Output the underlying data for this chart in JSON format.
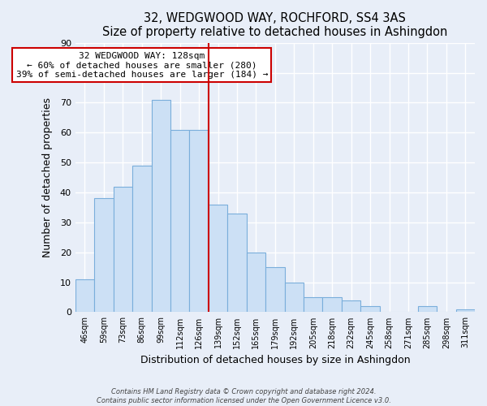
{
  "title": "32, WEDGWOOD WAY, ROCHFORD, SS4 3AS",
  "subtitle": "Size of property relative to detached houses in Ashingdon",
  "xlabel": "Distribution of detached houses by size in Ashingdon",
  "ylabel": "Number of detached properties",
  "bar_labels": [
    "46sqm",
    "59sqm",
    "73sqm",
    "86sqm",
    "99sqm",
    "112sqm",
    "126sqm",
    "139sqm",
    "152sqm",
    "165sqm",
    "179sqm",
    "192sqm",
    "205sqm",
    "218sqm",
    "232sqm",
    "245sqm",
    "258sqm",
    "271sqm",
    "285sqm",
    "298sqm",
    "311sqm"
  ],
  "bar_values": [
    11,
    38,
    42,
    49,
    71,
    61,
    61,
    36,
    33,
    20,
    15,
    10,
    5,
    5,
    4,
    2,
    0,
    0,
    2,
    0,
    1
  ],
  "bar_color": "#cce0f5",
  "bar_edge_color": "#7aaedb",
  "reference_line_color": "#cc0000",
  "ylim": [
    0,
    90
  ],
  "yticks": [
    0,
    10,
    20,
    30,
    40,
    50,
    60,
    70,
    80,
    90
  ],
  "annotation_title": "32 WEDGWOOD WAY: 128sqm",
  "annotation_line1": "← 60% of detached houses are smaller (280)",
  "annotation_line2": "39% of semi-detached houses are larger (184) →",
  "annotation_box_color": "#ffffff",
  "annotation_box_edge": "#cc0000",
  "footer_line1": "Contains HM Land Registry data © Crown copyright and database right 2024.",
  "footer_line2": "Contains public sector information licensed under the Open Government Licence v3.0.",
  "background_color": "#e8eef8",
  "plot_background_color": "#e8eef8",
  "grid_color": "#ffffff"
}
